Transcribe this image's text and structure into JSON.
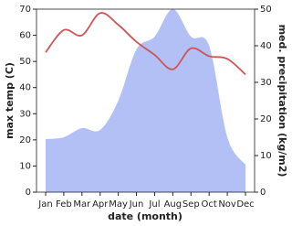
{
  "chart_data": {
    "type": "line",
    "x_label": "date (month)",
    "y_label": "max temp (C)",
    "y2_label": "med. precipitation (kg/m2)",
    "categories": [
      "Jan",
      "Feb",
      "Mar",
      "Apr",
      "May",
      "Jun",
      "Jul",
      "Aug",
      "Sep",
      "Oct",
      "Nov",
      "Dec"
    ],
    "series": [
      {
        "name": "med. precipitation",
        "type": "area",
        "axis": "y2",
        "color": "#b3c0f5",
        "values": [
          14.5,
          15,
          17.5,
          17,
          25,
          39,
          42.5,
          50,
          42.5,
          40,
          15,
          7.5
        ]
      },
      {
        "name": "max temp",
        "type": "line",
        "color": "#cd5656",
        "values": [
          53.5,
          62,
          60,
          68.5,
          64,
          57.5,
          52.5,
          47,
          55,
          52,
          51,
          45
        ]
      }
    ],
    "ylim": [
      0,
      70
    ],
    "yticks": [
      0,
      10,
      20,
      30,
      40,
      50,
      60,
      70
    ],
    "y2lim": [
      0,
      50
    ],
    "y2ticks": [
      0,
      10,
      20,
      30,
      40,
      50
    ]
  }
}
